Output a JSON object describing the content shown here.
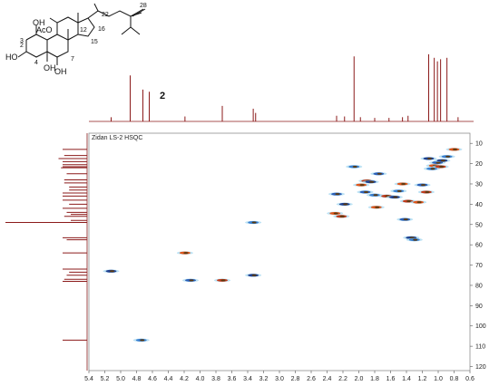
{
  "chart_data": {
    "type": "scatter",
    "title": "Zidan LS-2 HSQC",
    "compound_label": "2",
    "structure_labels": [
      "AcO",
      "OH",
      "HO",
      "OH",
      "OH",
      "2",
      "3",
      "4",
      "7",
      "12",
      "15",
      "16",
      "22",
      "28"
    ],
    "x_axis": {
      "min": 0.6,
      "max": 5.4,
      "reversed": true,
      "ticks": [
        5.4,
        5.2,
        5.0,
        4.8,
        4.6,
        4.4,
        4.2,
        4.0,
        3.8,
        3.6,
        3.4,
        3.2,
        3.0,
        2.8,
        2.6,
        2.4,
        2.2,
        2.0,
        1.8,
        1.6,
        1.4,
        1.2,
        1.0,
        0.8,
        0.6
      ]
    },
    "y_axis": {
      "min": 5,
      "max": 122,
      "side": "right",
      "ticks": [
        10,
        20,
        30,
        40,
        50,
        60,
        70,
        80,
        90,
        100,
        110,
        120
      ]
    },
    "proton_spectrum": [
      {
        "ppm": 5.12,
        "h": 0.06
      },
      {
        "ppm": 4.88,
        "h": 0.65
      },
      {
        "ppm": 4.72,
        "h": 0.45
      },
      {
        "ppm": 4.64,
        "h": 0.42
      },
      {
        "ppm": 4.19,
        "h": 0.07
      },
      {
        "ppm": 3.72,
        "h": 0.22
      },
      {
        "ppm": 3.33,
        "h": 0.18
      },
      {
        "ppm": 3.3,
        "h": 0.12
      },
      {
        "ppm": 2.28,
        "h": 0.08
      },
      {
        "ppm": 2.18,
        "h": 0.07
      },
      {
        "ppm": 2.06,
        "h": 0.92
      },
      {
        "ppm": 1.98,
        "h": 0.06
      },
      {
        "ppm": 1.8,
        "h": 0.05
      },
      {
        "ppm": 1.62,
        "h": 0.05
      },
      {
        "ppm": 1.45,
        "h": 0.06
      },
      {
        "ppm": 1.38,
        "h": 0.08
      },
      {
        "ppm": 1.12,
        "h": 0.95
      },
      {
        "ppm": 1.05,
        "h": 0.9
      },
      {
        "ppm": 1.01,
        "h": 0.85
      },
      {
        "ppm": 0.97,
        "h": 0.88
      },
      {
        "ppm": 0.89,
        "h": 0.9
      },
      {
        "ppm": 0.75,
        "h": 0.06
      }
    ],
    "carbon_spectrum": [
      {
        "ppm": 13.0,
        "h": 0.3
      },
      {
        "ppm": 16.0,
        "h": 0.28
      },
      {
        "ppm": 17.5,
        "h": 0.35
      },
      {
        "ppm": 19.0,
        "h": 0.3
      },
      {
        "ppm": 20.5,
        "h": 0.3
      },
      {
        "ppm": 21.5,
        "h": 0.3
      },
      {
        "ppm": 22.0,
        "h": 0.32
      },
      {
        "ppm": 25.0,
        "h": 0.25
      },
      {
        "ppm": 28.0,
        "h": 0.28
      },
      {
        "ppm": 29.5,
        "h": 0.28
      },
      {
        "ppm": 31.5,
        "h": 0.22
      },
      {
        "ppm": 33.0,
        "h": 0.22
      },
      {
        "ppm": 34.5,
        "h": 0.3
      },
      {
        "ppm": 36.0,
        "h": 0.3
      },
      {
        "ppm": 38.0,
        "h": 0.3
      },
      {
        "ppm": 40.0,
        "h": 0.22
      },
      {
        "ppm": 42.0,
        "h": 0.3
      },
      {
        "ppm": 44.0,
        "h": 0.25
      },
      {
        "ppm": 45.0,
        "h": 0.2
      },
      {
        "ppm": 46.0,
        "h": 0.28
      },
      {
        "ppm": 48.0,
        "h": 0.2
      },
      {
        "ppm": 49.0,
        "h": 1.0
      },
      {
        "ppm": 56.5,
        "h": 0.3
      },
      {
        "ppm": 57.5,
        "h": 0.25
      },
      {
        "ppm": 64.0,
        "h": 0.3
      },
      {
        "ppm": 72.0,
        "h": 0.3
      },
      {
        "ppm": 73.5,
        "h": 0.22
      },
      {
        "ppm": 75.0,
        "h": 0.25
      },
      {
        "ppm": 77.0,
        "h": 0.28
      },
      {
        "ppm": 78.0,
        "h": 0.3
      },
      {
        "ppm": 107.0,
        "h": 0.3
      }
    ],
    "cross_peaks": [
      {
        "h": 5.12,
        "c": 73.0
      },
      {
        "h": 4.74,
        "c": 107.0
      },
      {
        "h": 4.19,
        "c": 64.0
      },
      {
        "h": 4.12,
        "c": 77.5
      },
      {
        "h": 3.72,
        "c": 77.5
      },
      {
        "h": 3.33,
        "c": 75.0
      },
      {
        "h": 3.33,
        "c": 49.0
      },
      {
        "h": 2.3,
        "c": 44.5
      },
      {
        "h": 2.28,
        "c": 35.0
      },
      {
        "h": 2.22,
        "c": 46.0
      },
      {
        "h": 2.18,
        "c": 40.0
      },
      {
        "h": 2.06,
        "c": 21.5
      },
      {
        "h": 1.97,
        "c": 30.5
      },
      {
        "h": 1.92,
        "c": 34.0
      },
      {
        "h": 1.9,
        "c": 28.5
      },
      {
        "h": 1.85,
        "c": 29.0
      },
      {
        "h": 1.8,
        "c": 35.5
      },
      {
        "h": 1.78,
        "c": 41.5
      },
      {
        "h": 1.75,
        "c": 25.0
      },
      {
        "h": 1.65,
        "c": 36.0
      },
      {
        "h": 1.55,
        "c": 36.5
      },
      {
        "h": 1.5,
        "c": 33.5
      },
      {
        "h": 1.45,
        "c": 30.0
      },
      {
        "h": 1.42,
        "c": 47.5
      },
      {
        "h": 1.38,
        "c": 38.5
      },
      {
        "h": 1.34,
        "c": 56.5
      },
      {
        "h": 1.3,
        "c": 57.5
      },
      {
        "h": 1.25,
        "c": 39.0
      },
      {
        "h": 1.2,
        "c": 30.5
      },
      {
        "h": 1.15,
        "c": 34.0
      },
      {
        "h": 1.12,
        "c": 17.5
      },
      {
        "h": 1.08,
        "c": 22.5
      },
      {
        "h": 1.05,
        "c": 21.0
      },
      {
        "h": 1.01,
        "c": 19.5
      },
      {
        "h": 0.97,
        "c": 21.5
      },
      {
        "h": 0.95,
        "c": 18.5
      },
      {
        "h": 0.89,
        "c": 16.5
      },
      {
        "h": 0.8,
        "c": 13.0
      }
    ]
  }
}
